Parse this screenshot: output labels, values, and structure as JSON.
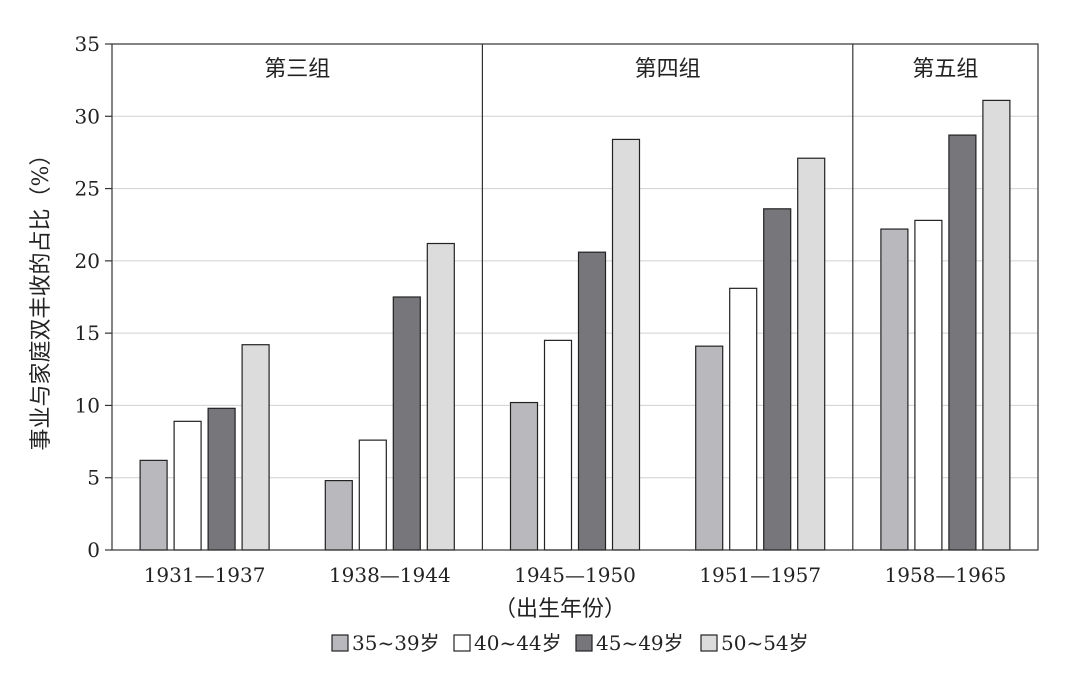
{
  "chart_data": {
    "type": "bar",
    "ylabel": "事业与家庭双丰收的占比（%）",
    "xlabel": "（出生年份）",
    "ylim": [
      0,
      35
    ],
    "yticks": [
      0,
      5,
      10,
      15,
      20,
      25,
      30,
      35
    ],
    "grid": true,
    "legend_position": "bottom",
    "categories": [
      "1931—1937",
      "1938—1944",
      "1945—1950",
      "1951—1957",
      "1958—1965"
    ],
    "groups": [
      {
        "label": "第三组",
        "categories": [
          "1931—1937",
          "1938—1944"
        ]
      },
      {
        "label": "第四组",
        "categories": [
          "1945—1950",
          "1951—1957"
        ]
      },
      {
        "label": "第五组",
        "categories": [
          "1958—1965"
        ]
      }
    ],
    "series": [
      {
        "name": "35~39岁",
        "color": "#b9b9bd",
        "values": [
          6.2,
          4.8,
          10.2,
          14.1,
          22.2
        ]
      },
      {
        "name": "40~44岁",
        "color": "#ffffff",
        "values": [
          8.9,
          7.6,
          14.5,
          18.1,
          22.8
        ]
      },
      {
        "name": "45~49岁",
        "color": "#77777b",
        "values": [
          9.8,
          17.5,
          20.6,
          23.6,
          28.7
        ]
      },
      {
        "name": "50~54岁",
        "color": "#dcdcdc",
        "values": [
          14.2,
          21.2,
          28.4,
          27.1,
          31.1
        ]
      }
    ]
  }
}
